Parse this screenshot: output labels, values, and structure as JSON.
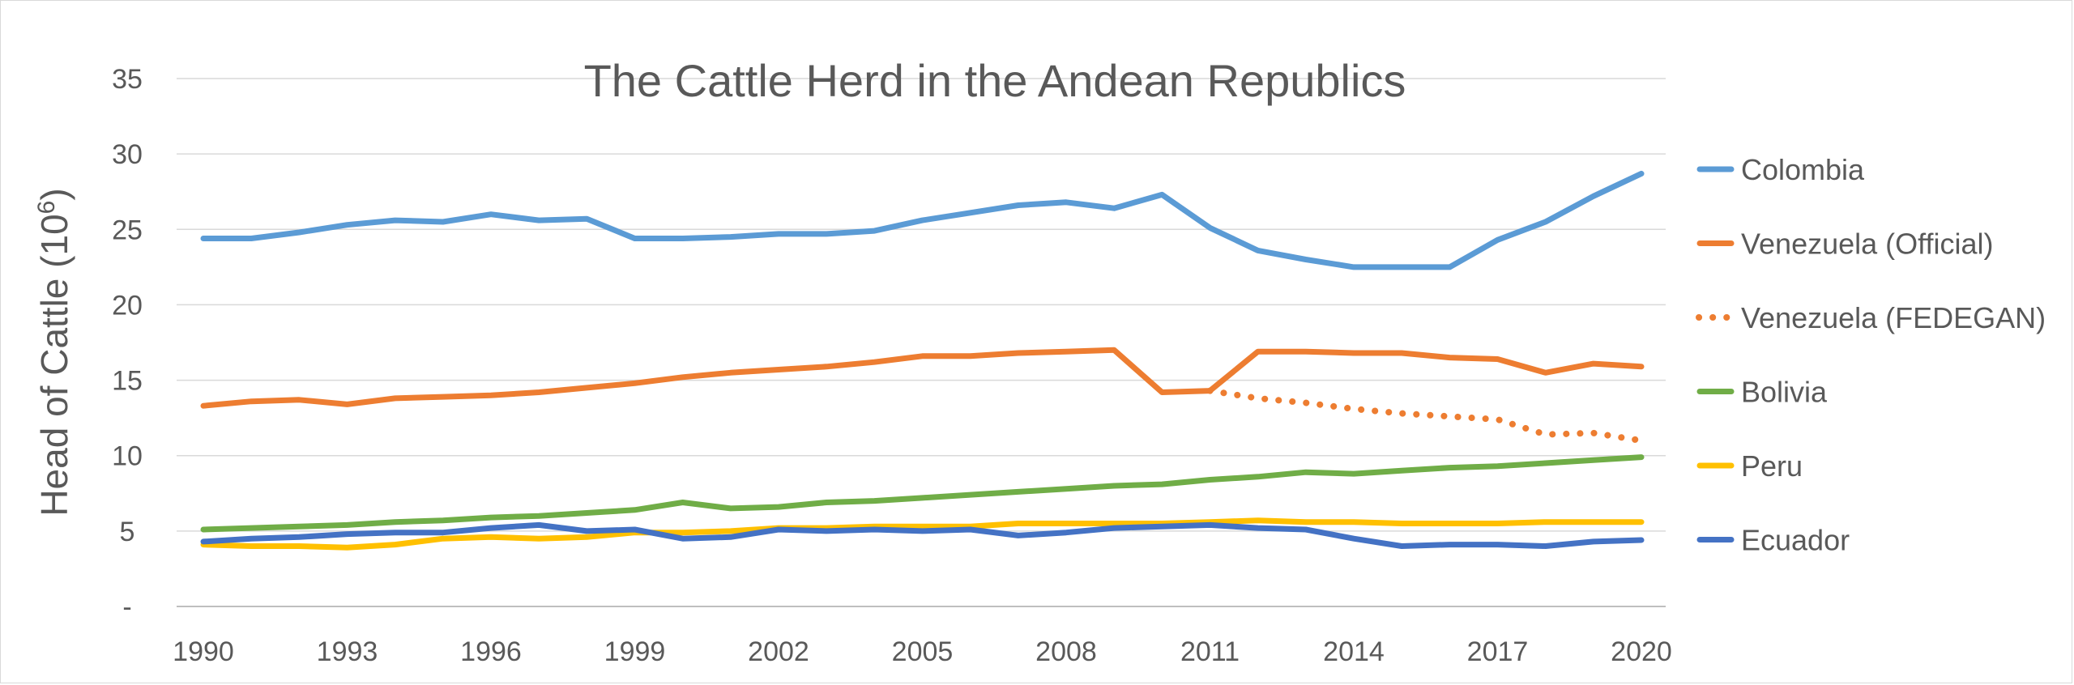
{
  "chart_data": {
    "type": "line",
    "title": "The Cattle Herd in the Andean Republics",
    "ylabel": "Head of Cattle (10",
    "ylabel_sup": "6",
    "ylabel_close": ")",
    "xlabel": "",
    "xlim": [
      1990,
      2020
    ],
    "ylim": [
      0,
      35
    ],
    "x_ticks": [
      "1990",
      "1993",
      "1996",
      "1999",
      "2002",
      "2005",
      "2008",
      "2011",
      "2014",
      "2017",
      "2020"
    ],
    "y_ticks": [
      "-",
      "5",
      "10",
      "15",
      "20",
      "25",
      "30",
      "35"
    ],
    "grid": "horizontal",
    "legend_position": "right",
    "series": [
      {
        "name": "Colombia",
        "color": "#5B9BD5",
        "style": "solid",
        "x": [
          1990,
          1991,
          1992,
          1993,
          1994,
          1995,
          1996,
          1997,
          1998,
          1999,
          2000,
          2001,
          2002,
          2003,
          2004,
          2005,
          2006,
          2007,
          2008,
          2009,
          2010,
          2011,
          2012,
          2013,
          2014,
          2015,
          2016,
          2017,
          2018,
          2019,
          2020
        ],
        "values": [
          24.4,
          24.4,
          24.8,
          25.3,
          25.6,
          25.5,
          26.0,
          25.6,
          25.7,
          24.4,
          24.4,
          24.5,
          24.7,
          24.7,
          24.9,
          25.6,
          26.1,
          26.6,
          26.8,
          26.4,
          27.3,
          25.1,
          23.6,
          23.0,
          22.5,
          22.5,
          22.5,
          24.3,
          25.5,
          27.2,
          28.7
        ]
      },
      {
        "name": "Venezuela (Official)",
        "color": "#ED7D31",
        "style": "solid",
        "x": [
          1990,
          1991,
          1992,
          1993,
          1994,
          1995,
          1996,
          1997,
          1998,
          1999,
          2000,
          2001,
          2002,
          2003,
          2004,
          2005,
          2006,
          2007,
          2008,
          2009,
          2010,
          2011,
          2012,
          2013,
          2014,
          2015,
          2016,
          2017,
          2018,
          2019,
          2020
        ],
        "values": [
          13.3,
          13.6,
          13.7,
          13.4,
          13.8,
          13.9,
          14.0,
          14.2,
          14.5,
          14.8,
          15.2,
          15.5,
          15.7,
          15.9,
          16.2,
          16.6,
          16.6,
          16.8,
          16.9,
          17.0,
          14.2,
          14.3,
          16.9,
          16.9,
          16.8,
          16.8,
          16.5,
          16.4,
          15.5,
          16.1,
          15.9
        ]
      },
      {
        "name": "Venezuela (FEDEGAN)",
        "color": "#ED7D31",
        "style": "dotted",
        "x": [
          2011,
          2012,
          2013,
          2014,
          2015,
          2016,
          2017,
          2018,
          2019,
          2020
        ],
        "values": [
          14.3,
          13.8,
          13.5,
          13.1,
          12.8,
          12.6,
          12.4,
          11.4,
          11.5,
          11.0
        ]
      },
      {
        "name": "Bolivia",
        "color": "#70AD47",
        "style": "solid",
        "x": [
          1990,
          1991,
          1992,
          1993,
          1994,
          1995,
          1996,
          1997,
          1998,
          1999,
          2000,
          2001,
          2002,
          2003,
          2004,
          2005,
          2006,
          2007,
          2008,
          2009,
          2010,
          2011,
          2012,
          2013,
          2014,
          2015,
          2016,
          2017,
          2018,
          2019,
          2020
        ],
        "values": [
          5.1,
          5.2,
          5.3,
          5.4,
          5.6,
          5.7,
          5.9,
          6.0,
          6.2,
          6.4,
          6.9,
          6.5,
          6.6,
          6.9,
          7.0,
          7.2,
          7.4,
          7.6,
          7.8,
          8.0,
          8.1,
          8.4,
          8.6,
          8.9,
          8.8,
          9.0,
          9.2,
          9.3,
          9.5,
          9.7,
          9.9
        ]
      },
      {
        "name": "Peru",
        "color": "#FFC000",
        "style": "solid",
        "x": [
          1990,
          1991,
          1992,
          1993,
          1994,
          1995,
          1996,
          1997,
          1998,
          1999,
          2000,
          2001,
          2002,
          2003,
          2004,
          2005,
          2006,
          2007,
          2008,
          2009,
          2010,
          2011,
          2012,
          2013,
          2014,
          2015,
          2016,
          2017,
          2018,
          2019,
          2020
        ],
        "values": [
          4.1,
          4.0,
          4.0,
          3.9,
          4.1,
          4.5,
          4.6,
          4.5,
          4.6,
          4.9,
          4.9,
          5.0,
          5.2,
          5.2,
          5.3,
          5.3,
          5.3,
          5.5,
          5.5,
          5.5,
          5.5,
          5.6,
          5.7,
          5.6,
          5.6,
          5.5,
          5.5,
          5.5,
          5.6,
          5.6,
          5.6
        ]
      },
      {
        "name": "Ecuador",
        "color": "#4472C4",
        "style": "solid",
        "x": [
          1990,
          1991,
          1992,
          1993,
          1994,
          1995,
          1996,
          1997,
          1998,
          1999,
          2000,
          2001,
          2002,
          2003,
          2004,
          2005,
          2006,
          2007,
          2008,
          2009,
          2010,
          2011,
          2012,
          2013,
          2014,
          2015,
          2016,
          2017,
          2018,
          2019,
          2020
        ],
        "values": [
          4.3,
          4.5,
          4.6,
          4.8,
          4.9,
          4.9,
          5.2,
          5.4,
          5.0,
          5.1,
          4.5,
          4.6,
          5.1,
          5.0,
          5.1,
          5.0,
          5.1,
          4.7,
          4.9,
          5.2,
          5.3,
          5.4,
          5.2,
          5.1,
          4.5,
          4.0,
          4.1,
          4.1,
          4.0,
          4.3,
          4.4
        ]
      }
    ]
  }
}
